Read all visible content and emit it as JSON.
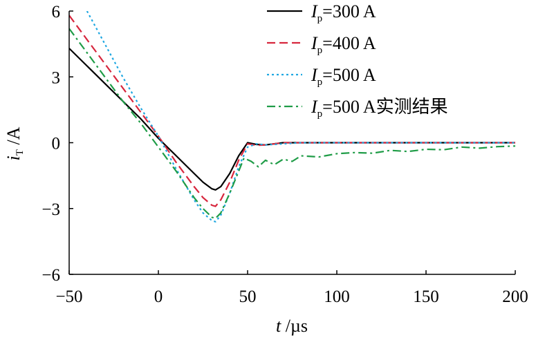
{
  "chart_data": {
    "type": "line",
    "xlabel": {
      "var": "t",
      "unit": " /µs"
    },
    "ylabel": {
      "var": "i",
      "sub": "T",
      "unit": " /A"
    },
    "xlim": [
      -50,
      200
    ],
    "ylim": [
      -6,
      6
    ],
    "xticks": [
      -50,
      0,
      50,
      100,
      150,
      200
    ],
    "yticks": [
      -6,
      -3,
      0,
      3,
      6
    ],
    "xtick_labels": [
      "−50",
      "0",
      "50",
      "100",
      "150",
      "200"
    ],
    "ytick_labels": [
      "−6",
      "−3",
      "0",
      "3",
      "6"
    ],
    "grid": false,
    "legend_position": "top-right",
    "series": [
      {
        "name": "I_p=300 A",
        "legend": {
          "var": "I",
          "sub": "p",
          "rest": "=300 A"
        },
        "color": "#000000",
        "style": "solid",
        "x": [
          -50,
          -40,
          -30,
          -20,
          -10,
          0,
          10,
          20,
          25,
          30,
          32,
          35,
          40,
          45,
          50,
          55,
          60,
          65,
          70,
          80,
          100,
          150,
          200
        ],
        "y": [
          4.3,
          3.5,
          2.7,
          1.9,
          1.1,
          0.2,
          -0.6,
          -1.4,
          -1.8,
          -2.1,
          -2.15,
          -2.0,
          -1.4,
          -0.6,
          0.0,
          -0.08,
          -0.1,
          -0.05,
          0.0,
          0.0,
          0.0,
          0.0,
          0.0
        ]
      },
      {
        "name": "I_p=400 A",
        "legend": {
          "var": "I",
          "sub": "p",
          "rest": "=400 A"
        },
        "color": "#d7263d",
        "style": "dashed",
        "x": [
          -50,
          -40,
          -30,
          -20,
          -10,
          0,
          10,
          20,
          25,
          30,
          32,
          35,
          40,
          45,
          50,
          55,
          60,
          65,
          70,
          80,
          100,
          150,
          200
        ],
        "y": [
          5.8,
          4.7,
          3.6,
          2.5,
          1.4,
          0.3,
          -0.9,
          -2.0,
          -2.5,
          -2.85,
          -2.9,
          -2.6,
          -1.8,
          -0.8,
          -0.05,
          -0.12,
          -0.1,
          -0.05,
          0.0,
          0.0,
          0.0,
          0.0,
          0.0
        ]
      },
      {
        "name": "I_p=500 A",
        "legend": {
          "var": "I",
          "sub": "p",
          "rest": "=500 A"
        },
        "color": "#1ea7e1",
        "style": "dotted",
        "x": [
          -40,
          -30,
          -20,
          -10,
          0,
          10,
          20,
          25,
          30,
          32,
          35,
          40,
          45,
          50,
          55,
          60,
          65,
          70,
          80,
          100,
          150,
          200
        ],
        "y": [
          6.0,
          4.5,
          3.0,
          1.6,
          0.3,
          -1.2,
          -2.6,
          -3.2,
          -3.55,
          -3.6,
          -3.3,
          -2.3,
          -1.1,
          -0.2,
          -0.05,
          -0.1,
          -0.08,
          -0.05,
          0.0,
          0.0,
          0.0,
          0.0
        ]
      },
      {
        "name": "I_p=500 A实测结果",
        "legend": {
          "var": "I",
          "sub": "p",
          "rest": "=500 A实测结果"
        },
        "color": "#1f9c47",
        "style": "dashdot",
        "x": [
          -50,
          -40,
          -30,
          -20,
          -10,
          0,
          10,
          20,
          25,
          30,
          32,
          35,
          40,
          45,
          48,
          52,
          56,
          60,
          65,
          70,
          75,
          80,
          90,
          100,
          110,
          120,
          130,
          140,
          150,
          160,
          170,
          180,
          190,
          200
        ],
        "y": [
          5.2,
          4.1,
          3.0,
          1.9,
          0.9,
          -0.2,
          -1.3,
          -2.5,
          -3.0,
          -3.4,
          -3.45,
          -3.2,
          -2.3,
          -1.3,
          -0.7,
          -0.85,
          -1.1,
          -0.8,
          -1.0,
          -0.75,
          -0.85,
          -0.6,
          -0.65,
          -0.5,
          -0.45,
          -0.48,
          -0.35,
          -0.4,
          -0.3,
          -0.32,
          -0.2,
          -0.25,
          -0.18,
          -0.15
        ]
      }
    ]
  }
}
